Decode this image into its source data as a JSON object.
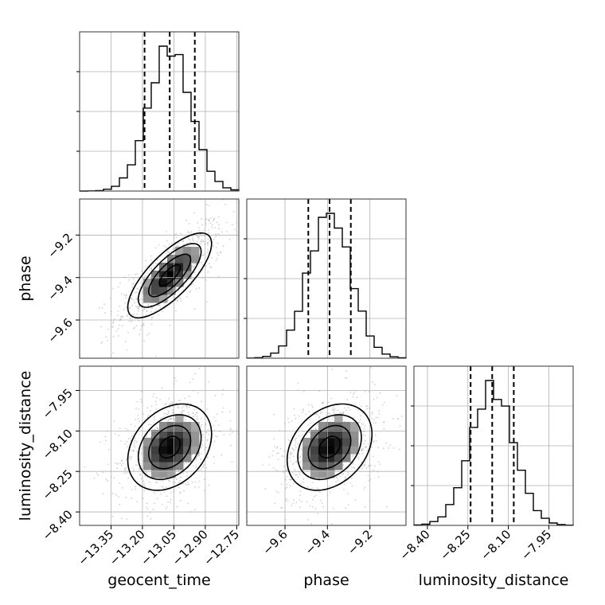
{
  "chart_data": {
    "type": "corner",
    "parameters": [
      "geocent_time",
      "phase",
      "luminosity_distance"
    ],
    "axes": {
      "geocent_time": {
        "label": "geocent_time",
        "range": [
          -13.5,
          -12.74
        ],
        "ticks": [
          -13.35,
          -13.2,
          -13.05,
          -12.9,
          -12.75
        ],
        "tick_labels": [
          "−13.35",
          "−13.20",
          "−13.05",
          "−12.90",
          "−12.75"
        ],
        "mean": -13.07,
        "std": 0.1
      },
      "phase": {
        "label": "phase",
        "range": [
          -9.78,
          -9.03
        ],
        "ticks": [
          -9.6,
          -9.4,
          -9.2
        ],
        "tick_labels": [
          "−9.6",
          "−9.4",
          "−9.2"
        ],
        "mean": -9.39,
        "std": 0.1
      },
      "luminosity_distance": {
        "label": "luminosity_distance",
        "range": [
          -8.45,
          -7.86
        ],
        "ticks": [
          -8.4,
          -8.25,
          -8.1,
          -7.95
        ],
        "tick_labels": [
          "−8.40",
          "−8.25",
          "−8.10",
          "−7.95"
        ],
        "mean": -8.16,
        "std": 0.08
      }
    },
    "quantiles": {
      "geocent_time": [
        -13.19,
        -13.07,
        -12.95
      ],
      "phase": [
        -9.49,
        -9.39,
        -9.29
      ],
      "luminosity_distance": [
        -8.24,
        -8.16,
        -8.08
      ]
    },
    "correlations": {
      "phase_vs_geocent_time": 0.75,
      "luminosity_distance_vs_geocent_time": 0.3,
      "luminosity_distance_vs_phase": 0.3
    },
    "grid": true,
    "histogram_bins": 20,
    "contour_levels_sigma": [
      0.5,
      1.0,
      1.5,
      2.0
    ]
  }
}
